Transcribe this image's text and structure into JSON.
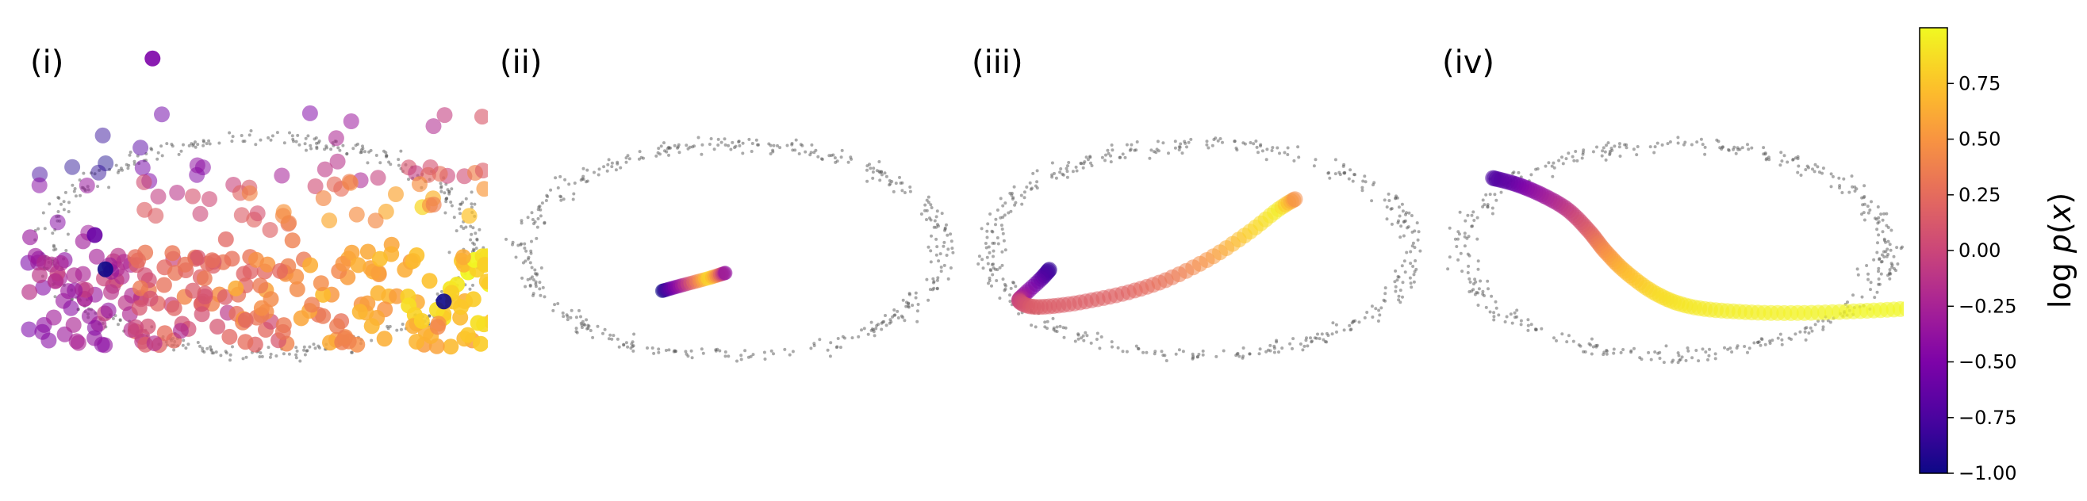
{
  "chart_data": {
    "type": "scatter",
    "panels": [
      {
        "label": "(i)",
        "kind": "cloud",
        "points": 330
      },
      {
        "label": "(ii)",
        "kind": "trajectory",
        "path": [
          [
            -0.34,
            -0.39
          ],
          [
            -0.25,
            -0.34
          ],
          [
            -0.12,
            -0.27
          ],
          [
            -0.04,
            -0.22
          ]
        ],
        "logp": [
          -1.0,
          -0.3,
          0.9,
          -0.4
        ],
        "markers": 30
      },
      {
        "label": "(iii)",
        "kind": "trajectory",
        "path": [
          [
            -0.72,
            -0.19
          ],
          [
            -0.76,
            -0.28
          ],
          [
            -0.84,
            -0.43
          ],
          [
            -0.86,
            -0.49
          ],
          [
            -0.8,
            -0.54
          ],
          [
            -0.68,
            -0.53
          ],
          [
            -0.52,
            -0.48
          ],
          [
            -0.34,
            -0.4
          ],
          [
            -0.16,
            -0.28
          ],
          [
            0.04,
            -0.08
          ],
          [
            0.22,
            0.16
          ],
          [
            0.36,
            0.38
          ],
          [
            0.44,
            0.48
          ]
        ],
        "logp": [
          -0.85,
          -0.7,
          -0.35,
          0.0,
          0.15,
          0.15,
          0.17,
          0.2,
          0.3,
          0.5,
          0.8,
          0.95,
          0.45
        ],
        "markers": 75
      },
      {
        "label": "(iv)",
        "kind": "trajectory",
        "path": [
          [
            -0.85,
            0.68
          ],
          [
            -0.74,
            0.62
          ],
          [
            -0.62,
            0.52
          ],
          [
            -0.5,
            0.38
          ],
          [
            -0.4,
            0.18
          ],
          [
            -0.32,
            -0.02
          ],
          [
            -0.22,
            -0.22
          ],
          [
            -0.08,
            -0.42
          ],
          [
            0.08,
            -0.54
          ],
          [
            0.32,
            -0.59
          ],
          [
            0.6,
            -0.6
          ],
          [
            0.9,
            -0.58
          ],
          [
            1.18,
            -0.55
          ],
          [
            1.42,
            -0.52
          ]
        ],
        "logp": [
          -0.75,
          -0.6,
          -0.35,
          -0.1,
          0.15,
          0.45,
          0.7,
          0.85,
          0.92,
          0.95,
          0.97,
          0.98,
          0.99,
          1.0
        ],
        "markers": 120
      }
    ],
    "colorbar": {
      "label": "log p(x)",
      "label_math": "log",
      "label_var": "p",
      "label_arg": "x",
      "colormap": "plasma",
      "vmin": -1.0,
      "vmax": 1.0,
      "ticks": [
        -1.0,
        -0.75,
        -0.5,
        -0.25,
        0.0,
        0.25,
        0.5,
        0.75
      ],
      "tick_labels": [
        "−1.00",
        "−0.75",
        "−0.50",
        "−0.25",
        "0.00",
        "0.25",
        "0.50",
        "0.75"
      ]
    },
    "data_ring": {
      "color": "#555555",
      "points_per_panel": 430
    }
  }
}
